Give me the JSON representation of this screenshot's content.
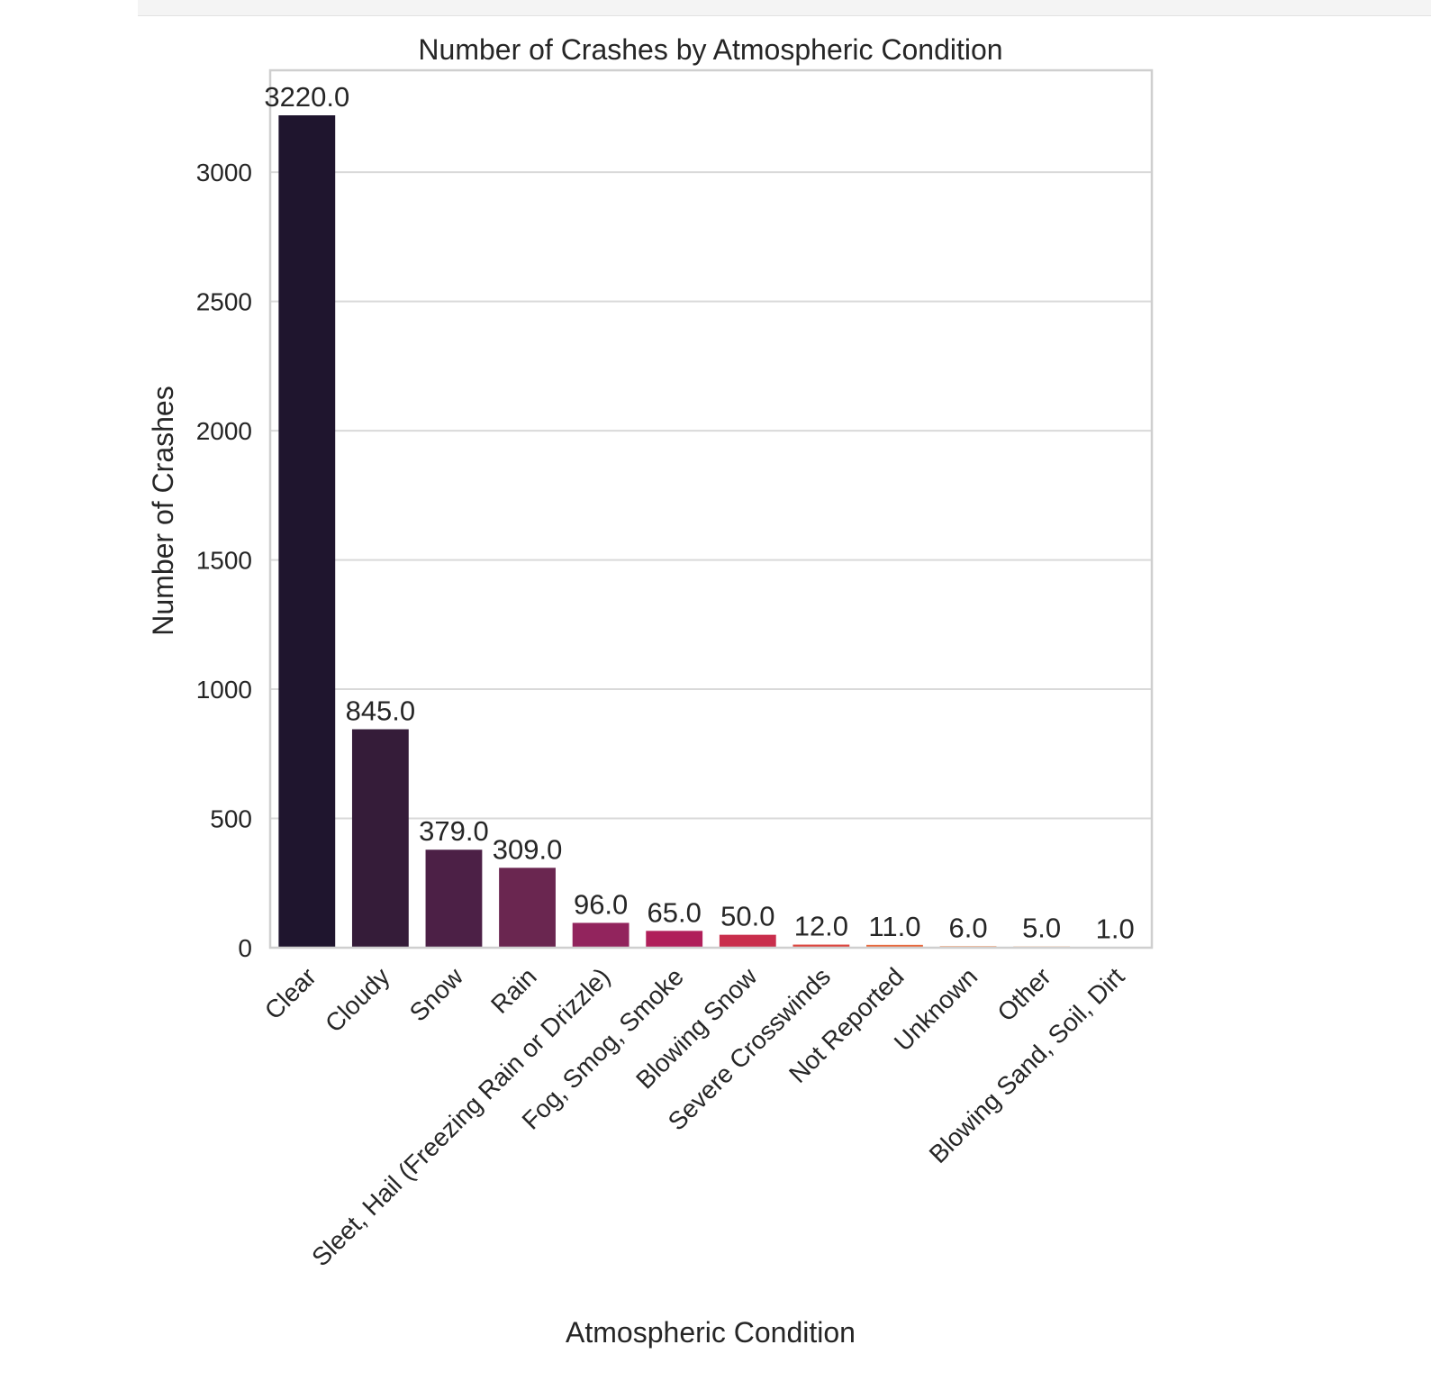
{
  "chart_data": {
    "type": "bar",
    "title": "Number of Crashes by Atmospheric Condition",
    "xlabel": "Atmospheric Condition",
    "ylabel": "Number of Crashes",
    "categories": [
      "Clear",
      "Cloudy",
      "Snow",
      "Rain",
      "Sleet, Hail (Freezing Rain or Drizzle)",
      "Fog, Smog, Smoke",
      "Blowing Snow",
      "Severe Crosswinds",
      "Not Reported",
      "Unknown",
      "Other",
      "Blowing Sand, Soil, Dirt"
    ],
    "values": [
      3220,
      845,
      379,
      309,
      96,
      65,
      50,
      12,
      11,
      6,
      5,
      1
    ],
    "data_labels": [
      "3220.0",
      "845.0",
      "379.0",
      "309.0",
      "96.0",
      "65.0",
      "50.0",
      "12.0",
      "11.0",
      "6.0",
      "5.0",
      "1.0"
    ],
    "colors": [
      "#1f152e",
      "#351c39",
      "#4c2046",
      "#6a2650",
      "#92245d",
      "#b01f5a",
      "#c92e4c",
      "#dc4740",
      "#e7693f",
      "#ee8a55",
      "#f3a777",
      "#f6c4a2"
    ],
    "yticks": [
      0,
      500,
      1000,
      1500,
      2000,
      2500,
      3000
    ],
    "ylim": [
      0,
      3220
    ],
    "grid": true,
    "legend": "none"
  }
}
